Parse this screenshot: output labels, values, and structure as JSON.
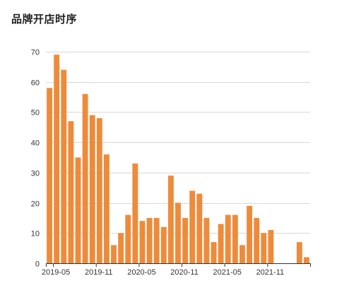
{
  "chart_data": {
    "type": "bar",
    "title": "品牌开店时序",
    "xlabel": "",
    "ylabel": "",
    "ylim": [
      0,
      70
    ],
    "yticks": [
      0,
      10,
      20,
      30,
      40,
      50,
      60,
      70
    ],
    "grid": true,
    "bar_color": "#EE8B3A",
    "categories": [
      "2019-04",
      "2019-05",
      "2019-06",
      "2019-07",
      "2019-08",
      "2019-09",
      "2019-10",
      "2019-11",
      "2019-12",
      "2020-01",
      "2020-02",
      "2020-03",
      "2020-04",
      "2020-05",
      "2020-06",
      "2020-07",
      "2020-08",
      "2020-09",
      "2020-10",
      "2020-11",
      "2020-12",
      "2021-01",
      "2021-02",
      "2021-03",
      "2021-04",
      "2021-05",
      "2021-06",
      "2021-07",
      "2021-08",
      "2021-09",
      "2021-10",
      "2021-11",
      "2021-12",
      "2022-01",
      "2022-02",
      "2022-03",
      "2022-04"
    ],
    "values": [
      58,
      69,
      64,
      47,
      35,
      56,
      49,
      48,
      36,
      6,
      10,
      16,
      33,
      14,
      15,
      15,
      12,
      29,
      20,
      15,
      24,
      23,
      15,
      7,
      13,
      16,
      16,
      6,
      19,
      15,
      10,
      11,
      0,
      0,
      0,
      7,
      2
    ],
    "xtick_labels": [
      {
        "category": "2019-05",
        "label": "2019-05"
      },
      {
        "category": "2019-11",
        "label": "2019-11"
      },
      {
        "category": "2020-05",
        "label": "2020-05"
      },
      {
        "category": "2020-11",
        "label": "2020-11"
      },
      {
        "category": "2021-05",
        "label": "2021-05"
      },
      {
        "category": "2021-11",
        "label": "2021-11"
      }
    ]
  }
}
